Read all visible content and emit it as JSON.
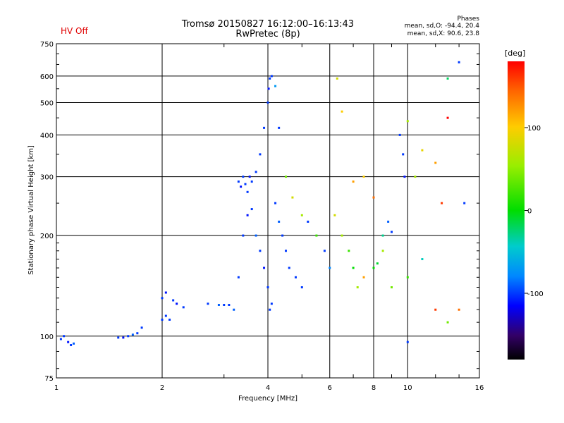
{
  "header": {
    "title_line1": "Tromsø 20150827 16:12:00–16:13:43",
    "title_line2": "RwPretec (8p)",
    "hv_status": "HV Off",
    "hv_color": "#e00000"
  },
  "phase_box": {
    "title": "Phases",
    "line_o": "mean, sd,O: -94.4, 20.4",
    "line_x": "mean, sd,X: 90.6, 23.8"
  },
  "colorbar": {
    "label": "[deg]",
    "ticks": [
      "100",
      "0",
      "-100"
    ],
    "tick_values": [
      100,
      0,
      -100
    ],
    "range": [
      -180,
      180
    ]
  },
  "chart_data": {
    "type": "scatter",
    "xlabel": "Frequency [MHz]",
    "ylabel": "Stationary phase Virtual Height [km]",
    "xscale": "log",
    "yscale": "log",
    "xlim": [
      1,
      16
    ],
    "ylim": [
      75,
      750
    ],
    "xticks": [
      1,
      2,
      4,
      6,
      8,
      10,
      16
    ],
    "xtick_labels": [
      "1",
      "2",
      "4",
      "6",
      "8",
      "10",
      "16"
    ],
    "yticks": [
      75,
      100,
      200,
      300,
      400,
      500,
      600,
      750
    ],
    "ytick_labels": [
      "75",
      "100",
      "200",
      "300",
      "400",
      "500",
      "600",
      "750"
    ],
    "grid": true,
    "color_scale": "phase (deg), colorbar on right",
    "points": [
      [
        1.03,
        98,
        -100
      ],
      [
        1.05,
        100,
        -100
      ],
      [
        1.08,
        96,
        -110
      ],
      [
        1.1,
        94,
        -100
      ],
      [
        1.12,
        95,
        -90
      ],
      [
        1.5,
        99,
        -100
      ],
      [
        1.55,
        99,
        -110
      ],
      [
        1.6,
        100,
        -100
      ],
      [
        1.65,
        101,
        -90
      ],
      [
        1.7,
        102,
        -100
      ],
      [
        1.75,
        106,
        -100
      ],
      [
        2.0,
        112,
        -100
      ],
      [
        2.05,
        115,
        -100
      ],
      [
        2.1,
        112,
        -100
      ],
      [
        2.0,
        130,
        -100
      ],
      [
        2.05,
        135,
        -110
      ],
      [
        2.15,
        128,
        -100
      ],
      [
        2.2,
        125,
        -110
      ],
      [
        2.3,
        122,
        -100
      ],
      [
        2.7,
        125,
        -100
      ],
      [
        2.9,
        124,
        -90
      ],
      [
        3.0,
        124,
        -100
      ],
      [
        3.1,
        124,
        -100
      ],
      [
        3.2,
        120,
        -90
      ],
      [
        3.3,
        150,
        -100
      ],
      [
        3.4,
        200,
        -100
      ],
      [
        3.5,
        230,
        -110
      ],
      [
        3.6,
        240,
        -100
      ],
      [
        3.7,
        310,
        -100
      ],
      [
        3.8,
        350,
        -100
      ],
      [
        3.9,
        420,
        -100
      ],
      [
        3.3,
        290,
        -100
      ],
      [
        3.35,
        280,
        -110
      ],
      [
        3.4,
        300,
        -100
      ],
      [
        3.45,
        285,
        -100
      ],
      [
        3.5,
        270,
        -100
      ],
      [
        3.55,
        300,
        -110
      ],
      [
        3.6,
        290,
        -100
      ],
      [
        3.7,
        200,
        -90
      ],
      [
        3.8,
        180,
        -100
      ],
      [
        3.9,
        160,
        -110
      ],
      [
        4.0,
        140,
        -100
      ],
      [
        4.05,
        120,
        -100
      ],
      [
        4.1,
        125,
        -100
      ],
      [
        4.0,
        500,
        -100
      ],
      [
        4.02,
        550,
        -110
      ],
      [
        4.05,
        590,
        -100
      ],
      [
        4.1,
        600,
        -100
      ],
      [
        4.2,
        560,
        -70
      ],
      [
        4.3,
        420,
        -100
      ],
      [
        4.2,
        250,
        -100
      ],
      [
        4.3,
        220,
        -90
      ],
      [
        4.4,
        200,
        -100
      ],
      [
        4.5,
        180,
        -100
      ],
      [
        4.6,
        160,
        -100
      ],
      [
        4.8,
        150,
        -100
      ],
      [
        5.0,
        140,
        -100
      ],
      [
        4.5,
        300,
        40
      ],
      [
        4.7,
        260,
        80
      ],
      [
        5.0,
        230,
        60
      ],
      [
        5.2,
        220,
        -100
      ],
      [
        5.5,
        200,
        20
      ],
      [
        5.8,
        180,
        -100
      ],
      [
        6.0,
        160,
        -80
      ],
      [
        6.2,
        230,
        80
      ],
      [
        6.5,
        200,
        60
      ],
      [
        6.8,
        180,
        20
      ],
      [
        7.0,
        160,
        0
      ],
      [
        7.2,
        140,
        60
      ],
      [
        7.5,
        150,
        120
      ],
      [
        8.0,
        160,
        0
      ],
      [
        8.2,
        165,
        -10
      ],
      [
        8.5,
        200,
        -30
      ],
      [
        8.8,
        220,
        -90
      ],
      [
        9.0,
        205,
        -100
      ],
      [
        9.5,
        400,
        -100
      ],
      [
        9.7,
        350,
        -100
      ],
      [
        9.8,
        300,
        -110
      ],
      [
        10.0,
        440,
        60
      ],
      [
        10.5,
        300,
        60
      ],
      [
        11.0,
        360,
        90
      ],
      [
        12.0,
        330,
        120
      ],
      [
        12.5,
        250,
        160
      ],
      [
        13.0,
        450,
        180
      ],
      [
        13.0,
        590,
        -20
      ],
      [
        14.0,
        660,
        -100
      ],
      [
        14.5,
        250,
        -100
      ],
      [
        6.3,
        590,
        80
      ],
      [
        6.5,
        470,
        100
      ],
      [
        7.0,
        290,
        120
      ],
      [
        7.5,
        300,
        100
      ],
      [
        8.0,
        260,
        140
      ],
      [
        8.5,
        180,
        60
      ],
      [
        9.0,
        140,
        40
      ],
      [
        10.0,
        150,
        20
      ],
      [
        11.0,
        170,
        -40
      ],
      [
        12.0,
        120,
        160
      ],
      [
        13.0,
        110,
        40
      ],
      [
        14.0,
        120,
        140
      ],
      [
        10.0,
        96,
        -100
      ]
    ]
  }
}
